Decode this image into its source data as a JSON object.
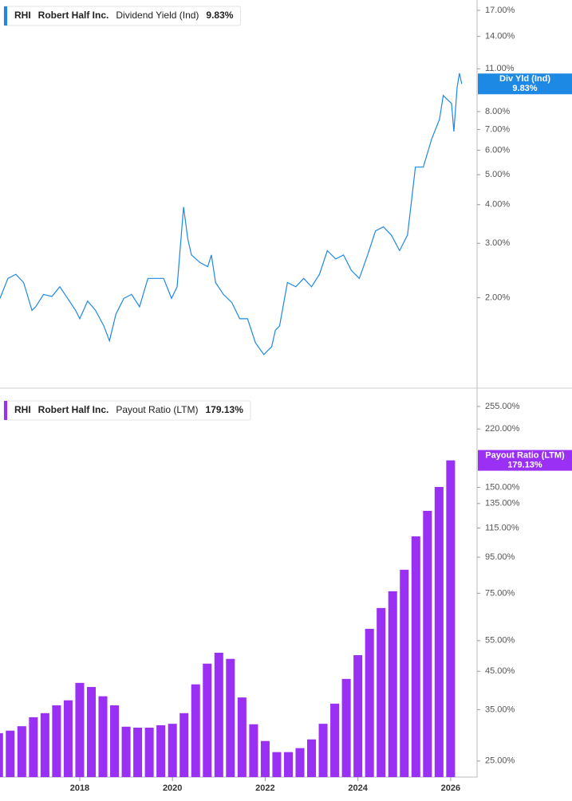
{
  "chart_data": [
    {
      "type": "line",
      "ticker": "RHI",
      "company": "Robert Half Inc.",
      "log_scale": true,
      "axis_flag": "Div Yld (Ind)",
      "last_value_label": "9.83%",
      "xlim": [
        2016.28,
        2026.57
      ],
      "ylim": [
        1.02,
        18.36
      ],
      "yticks": [
        {
          "value": 2,
          "label": "2.00%"
        },
        {
          "value": 3,
          "label": "3.00%"
        },
        {
          "value": 4,
          "label": "4.00%"
        },
        {
          "value": 5,
          "label": "5.00%"
        },
        {
          "value": 6,
          "label": "6.00%"
        },
        {
          "value": 7,
          "label": "7.00%"
        },
        {
          "value": 8,
          "label": "8.00%"
        },
        {
          "value": 11,
          "label": "11.00%"
        },
        {
          "value": 14,
          "label": "14.00%"
        },
        {
          "value": 17,
          "label": "17.00%"
        }
      ],
      "series": [
        {
          "name": "Dividend Yield (Ind)",
          "color": "#1e88e5",
          "x": [
            2016.28,
            2016.45,
            2016.62,
            2016.79,
            2016.97,
            2017.05,
            2017.22,
            2017.4,
            2017.57,
            2017.74,
            2017.91,
            2018.0,
            2018.17,
            2018.34,
            2018.52,
            2018.64,
            2018.78,
            2018.95,
            2019.12,
            2019.29,
            2019.47,
            2019.64,
            2019.81,
            2019.98,
            2020.1,
            2020.24,
            2020.33,
            2020.41,
            2020.59,
            2020.76,
            2020.84,
            2020.93,
            2021.1,
            2021.28,
            2021.45,
            2021.62,
            2021.79,
            2021.97,
            2022.14,
            2022.22,
            2022.31,
            2022.48,
            2022.66,
            2022.83,
            2023.0,
            2023.17,
            2023.34,
            2023.52,
            2023.69,
            2023.86,
            2024.03,
            2024.21,
            2024.38,
            2024.55,
            2024.72,
            2024.9,
            2025.07,
            2025.16,
            2025.24,
            2025.41,
            2025.59,
            2025.76,
            2025.84,
            2025.93,
            2026.02,
            2026.07,
            2026.14,
            2026.19,
            2026.24
          ],
          "values": [
            1.99,
            2.31,
            2.38,
            2.24,
            1.82,
            1.87,
            2.05,
            2.02,
            2.17,
            1.99,
            1.82,
            1.71,
            1.95,
            1.82,
            1.62,
            1.45,
            1.77,
            1.99,
            2.05,
            1.87,
            2.31,
            2.31,
            2.31,
            1.99,
            2.17,
            3.93,
            3.1,
            2.75,
            2.6,
            2.52,
            2.75,
            2.24,
            2.05,
            1.93,
            1.71,
            1.71,
            1.43,
            1.31,
            1.39,
            1.57,
            1.62,
            2.24,
            2.17,
            2.31,
            2.17,
            2.38,
            2.84,
            2.67,
            2.75,
            2.45,
            2.31,
            2.75,
            3.29,
            3.39,
            3.19,
            2.84,
            3.19,
            4.17,
            5.29,
            5.29,
            6.51,
            7.55,
            9.02,
            8.75,
            8.5,
            6.9,
            9.57,
            10.64,
            9.83
          ]
        }
      ]
    },
    {
      "type": "bar",
      "ticker": "RHI",
      "company": "Robert Half Inc.",
      "log_scale": true,
      "axis_flag": "Payout Ratio (LTM)",
      "last_value_label": "179.13%",
      "xlim": [
        2016.28,
        2026.57
      ],
      "ylim": [
        22.5,
        275.7
      ],
      "xticks": [
        2018,
        2020,
        2022,
        2024,
        2026
      ],
      "yticks": [
        {
          "value": 25,
          "label": "25.00%"
        },
        {
          "value": 35,
          "label": "35.00%"
        },
        {
          "value": 45,
          "label": "45.00%"
        },
        {
          "value": 55,
          "label": "55.00%"
        },
        {
          "value": 75,
          "label": "75.00%"
        },
        {
          "value": 95,
          "label": "95.00%"
        },
        {
          "value": 115,
          "label": "115.00%"
        },
        {
          "value": 135,
          "label": "135.00%"
        },
        {
          "value": 150,
          "label": "150.00%"
        },
        {
          "value": 220,
          "label": "220.00%"
        },
        {
          "value": 255,
          "label": "255.00%"
        }
      ],
      "series": [
        {
          "name": "Payout Ratio (LTM)",
          "color": "#9b30f5",
          "x": [
            2016.25,
            2016.5,
            2016.75,
            2017.0,
            2017.25,
            2017.5,
            2017.75,
            2018.0,
            2018.25,
            2018.5,
            2018.75,
            2019.0,
            2019.25,
            2019.5,
            2019.75,
            2020.0,
            2020.25,
            2020.5,
            2020.75,
            2021.0,
            2021.25,
            2021.5,
            2021.75,
            2022.0,
            2022.25,
            2022.5,
            2022.75,
            2023.0,
            2023.25,
            2023.5,
            2023.75,
            2024.0,
            2024.25,
            2024.5,
            2024.75,
            2025.0,
            2025.25,
            2025.5,
            2025.75,
            2026.0
          ],
          "values": [
            30.0,
            30.5,
            31.4,
            33.3,
            34.2,
            36.0,
            37.2,
            41.7,
            40.6,
            38.2,
            36.0,
            31.3,
            31.1,
            31.1,
            31.6,
            31.9,
            34.2,
            41.3,
            47.3,
            50.8,
            48.8,
            37.9,
            31.8,
            28.5,
            26.5,
            26.5,
            27.2,
            28.8,
            31.9,
            36.4,
            42.8,
            50.0,
            59.4,
            68.1,
            76.0,
            87.5,
            108.9,
            128.7,
            150.5,
            179.13
          ]
        }
      ]
    }
  ]
}
